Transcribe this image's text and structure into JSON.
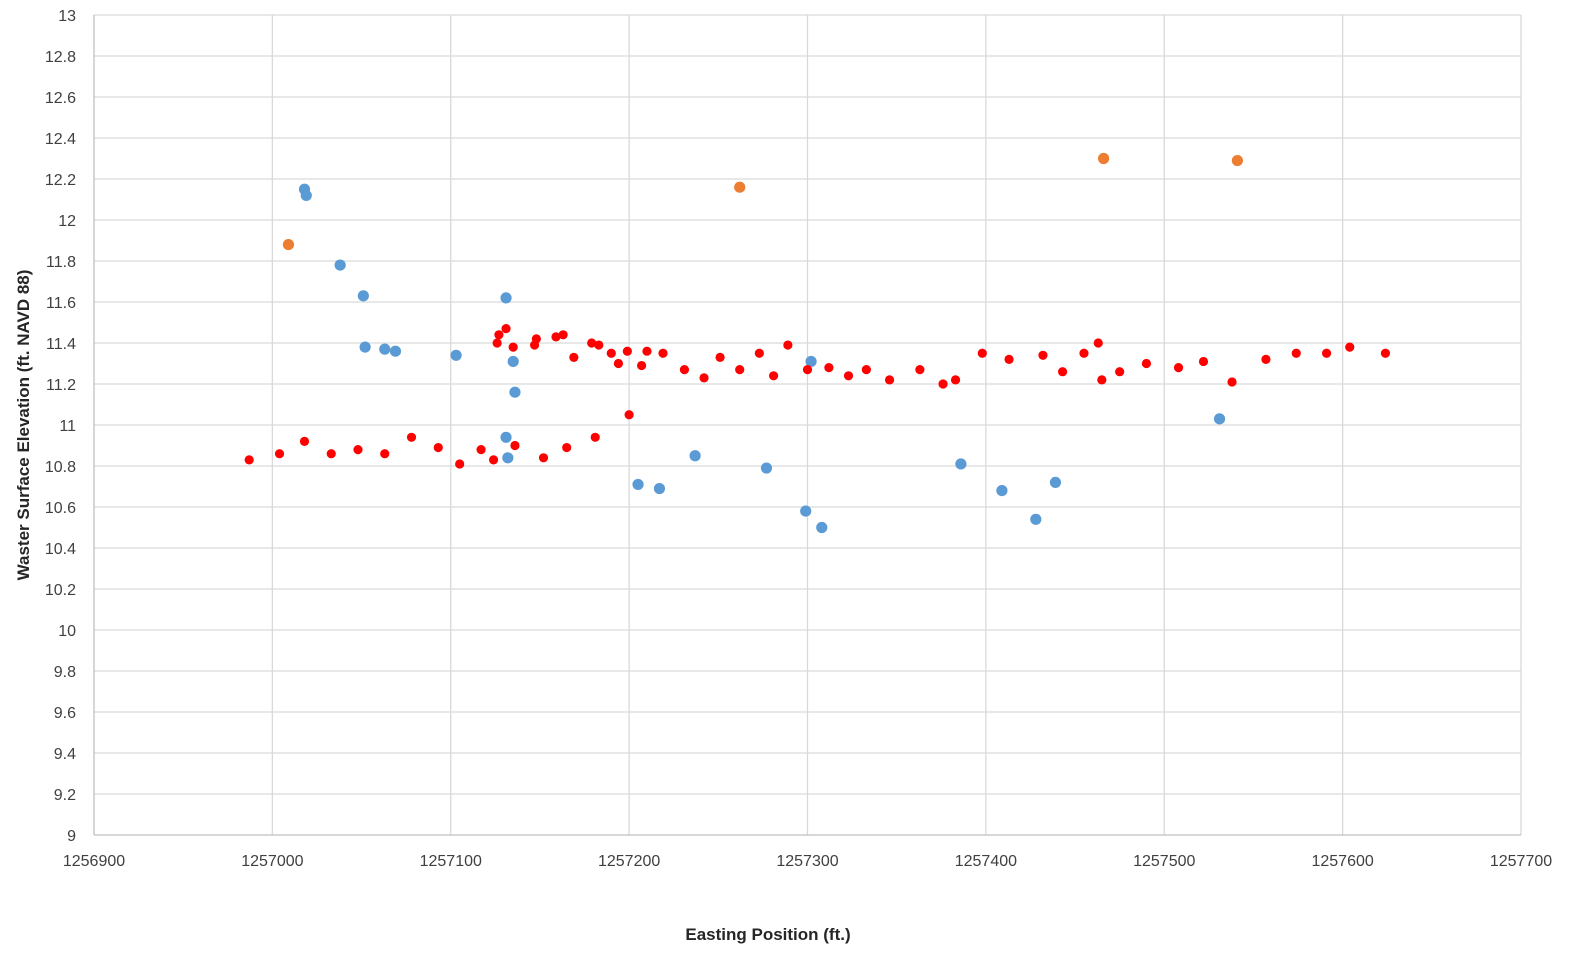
{
  "chart_data": {
    "type": "scatter",
    "title": "",
    "xlabel": "Easting Position (ft.)",
    "ylabel": "Waster Surface Elevation (ft. NAVD 88)",
    "xlim": [
      1256900,
      1257700
    ],
    "ylim": [
      9,
      13
    ],
    "x_ticks": [
      1256900,
      1257000,
      1257100,
      1257200,
      1257300,
      1257400,
      1257500,
      1257600,
      1257700
    ],
    "y_ticks": [
      9,
      9.2,
      9.4,
      9.6,
      9.8,
      10,
      10.2,
      10.4,
      10.6,
      10.8,
      11,
      11.2,
      11.4,
      11.6,
      11.8,
      12,
      12.2,
      12.4,
      12.6,
      12.8,
      13
    ],
    "y_tick_labels": [
      "9",
      "9.2",
      "9.4",
      "9.6",
      "9.8",
      "10",
      "10.2",
      "10.4",
      "10.6",
      "10.8",
      "11",
      "11.2",
      "11.4",
      "11.6",
      "11.8",
      "12",
      "12.2",
      "12.4",
      "12.6",
      "12.8",
      "13"
    ],
    "grid": "vertical-and-horizontal",
    "legend": "none",
    "series": [
      {
        "color": "#5b9bd5",
        "points": [
          [
            1257018,
            12.15
          ],
          [
            1257019,
            12.12
          ],
          [
            1257038,
            11.78
          ],
          [
            1257051,
            11.63
          ],
          [
            1257052,
            11.38
          ],
          [
            1257063,
            11.37
          ],
          [
            1257069,
            11.36
          ],
          [
            1257103,
            11.34
          ],
          [
            1257131,
            11.62
          ],
          [
            1257135,
            11.31
          ],
          [
            1257136,
            11.16
          ],
          [
            1257131,
            10.94
          ],
          [
            1257132,
            10.84
          ],
          [
            1257205,
            10.71
          ],
          [
            1257217,
            10.69
          ],
          [
            1257237,
            10.85
          ],
          [
            1257277,
            10.79
          ],
          [
            1257299,
            10.58
          ],
          [
            1257302,
            11.31
          ],
          [
            1257308,
            10.5
          ],
          [
            1257386,
            10.81
          ],
          [
            1257409,
            10.68
          ],
          [
            1257428,
            10.54
          ],
          [
            1257439,
            10.72
          ],
          [
            1257531,
            11.03
          ]
        ]
      },
      {
        "color": "#ed7d31",
        "points": [
          [
            1257009,
            11.88
          ],
          [
            1257262,
            12.16
          ],
          [
            1257466,
            12.3
          ],
          [
            1257541,
            12.29
          ]
        ]
      },
      {
        "color": "#ff0000",
        "points": [
          [
            1256987,
            10.83
          ],
          [
            1257004,
            10.86
          ],
          [
            1257018,
            10.92
          ],
          [
            1257033,
            10.86
          ],
          [
            1257048,
            10.88
          ],
          [
            1257063,
            10.86
          ],
          [
            1257078,
            10.94
          ],
          [
            1257093,
            10.89
          ],
          [
            1257105,
            10.81
          ],
          [
            1257117,
            10.88
          ],
          [
            1257124,
            10.83
          ],
          [
            1257136,
            10.9
          ],
          [
            1257152,
            10.84
          ],
          [
            1257165,
            10.89
          ],
          [
            1257181,
            10.94
          ],
          [
            1257200,
            11.05
          ],
          [
            1257126,
            11.4
          ],
          [
            1257127,
            11.44
          ],
          [
            1257131,
            11.47
          ],
          [
            1257135,
            11.38
          ],
          [
            1257147,
            11.39
          ],
          [
            1257148,
            11.42
          ],
          [
            1257159,
            11.43
          ],
          [
            1257163,
            11.44
          ],
          [
            1257169,
            11.33
          ],
          [
            1257179,
            11.4
          ],
          [
            1257183,
            11.39
          ],
          [
            1257190,
            11.35
          ],
          [
            1257194,
            11.3
          ],
          [
            1257199,
            11.36
          ],
          [
            1257207,
            11.29
          ],
          [
            1257210,
            11.36
          ],
          [
            1257219,
            11.35
          ],
          [
            1257231,
            11.27
          ],
          [
            1257242,
            11.23
          ],
          [
            1257251,
            11.33
          ],
          [
            1257262,
            11.27
          ],
          [
            1257273,
            11.35
          ],
          [
            1257281,
            11.24
          ],
          [
            1257289,
            11.39
          ],
          [
            1257300,
            11.27
          ],
          [
            1257312,
            11.28
          ],
          [
            1257323,
            11.24
          ],
          [
            1257333,
            11.27
          ],
          [
            1257346,
            11.22
          ],
          [
            1257363,
            11.27
          ],
          [
            1257376,
            11.2
          ],
          [
            1257383,
            11.22
          ],
          [
            1257398,
            11.35
          ],
          [
            1257413,
            11.32
          ],
          [
            1257432,
            11.34
          ],
          [
            1257443,
            11.26
          ],
          [
            1257455,
            11.35
          ],
          [
            1257463,
            11.4
          ],
          [
            1257465,
            11.22
          ],
          [
            1257475,
            11.26
          ],
          [
            1257490,
            11.3
          ],
          [
            1257508,
            11.28
          ],
          [
            1257522,
            11.31
          ],
          [
            1257538,
            11.21
          ],
          [
            1257557,
            11.32
          ],
          [
            1257574,
            11.35
          ],
          [
            1257591,
            11.35
          ],
          [
            1257604,
            11.38
          ],
          [
            1257624,
            11.35
          ]
        ]
      }
    ]
  }
}
